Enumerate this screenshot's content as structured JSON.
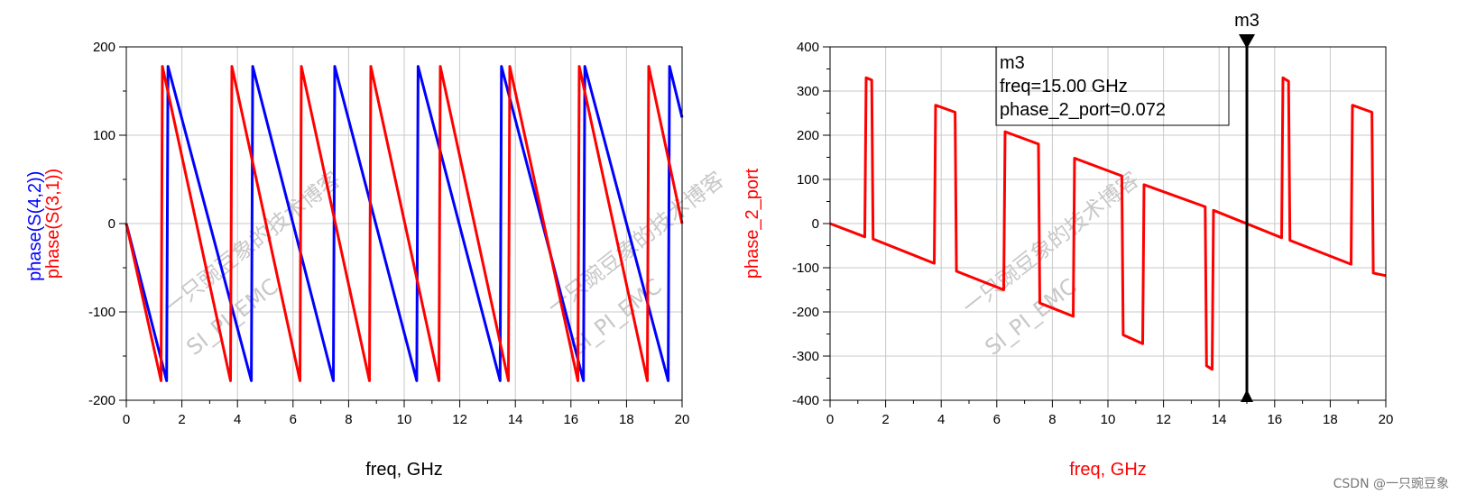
{
  "chart_data": [
    {
      "type": "line",
      "xlabel": "freq, GHz",
      "ylabel_parts": [
        "phase(S(4,2))",
        "phase(S(3,1))"
      ],
      "xlim": [
        0,
        20
      ],
      "ylim": [
        -200,
        200
      ],
      "x_ticks": [
        "0",
        "2",
        "4",
        "6",
        "8",
        "10",
        "12",
        "14",
        "16",
        "18",
        "20"
      ],
      "y_ticks": [
        "200",
        "100",
        "0",
        "-100",
        "-200"
      ],
      "grid": true,
      "series": [
        {
          "name": "phase(S(4,2))",
          "color": "#0000ff",
          "x": [
            0,
            1.45,
            1.5,
            4.5,
            4.55,
            7.45,
            7.5,
            10.45,
            10.5,
            13.45,
            13.5,
            16.45,
            16.5,
            19.5,
            19.55,
            20
          ],
          "y": [
            0,
            -178,
            178,
            -178,
            178,
            -178,
            178,
            -178,
            178,
            -178,
            178,
            -178,
            178,
            -178,
            178,
            120
          ]
        },
        {
          "name": "phase(S(3,1))",
          "color": "#ff0000",
          "x": [
            0,
            1.25,
            1.3,
            3.75,
            3.8,
            6.25,
            6.3,
            8.75,
            8.8,
            11.25,
            11.3,
            13.75,
            13.8,
            16.25,
            16.3,
            18.75,
            18.8,
            20
          ],
          "y": [
            0,
            -178,
            178,
            -178,
            178,
            -178,
            178,
            -178,
            178,
            -178,
            178,
            -178,
            178,
            -178,
            178,
            -178,
            178,
            0
          ]
        }
      ]
    },
    {
      "type": "line",
      "xlabel": "freq, GHz",
      "ylabel": "phase_2_port",
      "xlim": [
        0,
        20
      ],
      "ylim": [
        -400,
        400
      ],
      "x_ticks": [
        "0",
        "2",
        "4",
        "6",
        "8",
        "10",
        "12",
        "14",
        "16",
        "18",
        "20"
      ],
      "y_ticks": [
        "400",
        "300",
        "200",
        "100",
        "0",
        "-100",
        "-200",
        "-300",
        "-400"
      ],
      "grid": true,
      "series": [
        {
          "name": "phase_2_port",
          "color": "#ff0000",
          "x": [
            0,
            1.25,
            1.3,
            1.5,
            1.55,
            3.75,
            3.8,
            4.5,
            4.55,
            6.25,
            6.3,
            7.5,
            7.55,
            8.75,
            8.8,
            10.5,
            10.55,
            11.25,
            11.3,
            13.5,
            13.55,
            13.75,
            13.8,
            16.25,
            16.3,
            16.5,
            16.55,
            18.75,
            18.8,
            19.5,
            19.55,
            20
          ],
          "y": [
            0,
            -30,
            330,
            325,
            -35,
            -90,
            268,
            252,
            -108,
            -150,
            208,
            180,
            -180,
            -210,
            148,
            108,
            -252,
            -272,
            88,
            38,
            -322,
            -330,
            30,
            -32,
            330,
            322,
            -38,
            -92,
            268,
            252,
            -112,
            -118
          ]
        }
      ],
      "marker": {
        "name": "m3",
        "x": 15.0,
        "lines": [
          "m3",
          "freq=15.00 GHz",
          "phase_2_port=0.072"
        ]
      }
    }
  ],
  "watermark": {
    "line1": "一只豌豆象的技术博客",
    "line2": "SI_PI_EMC"
  },
  "credit": "CSDN @一只豌豆象"
}
